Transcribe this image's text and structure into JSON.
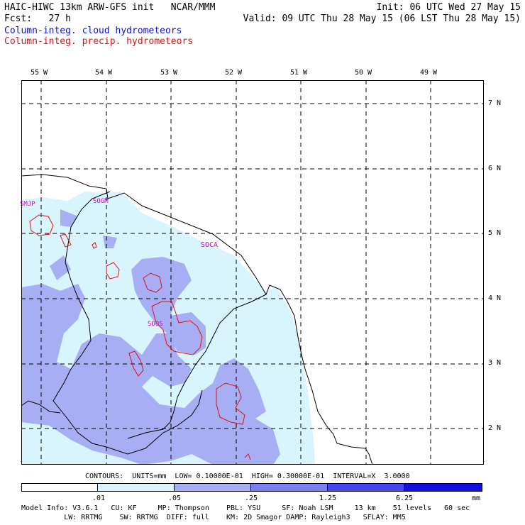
{
  "header": {
    "model": "HAIC-HIWC 13km ARW-GFS init   NCAR/MMM",
    "init": "Init: 06 UTC Wed 27 May 15",
    "fcst": "Fcst:   27 h",
    "valid": "Valid: 09 UTC Thu 28 May 15 (06 LST Thu 28 May 15)",
    "field_cloud": "Column-integ. cloud hydrometeors",
    "field_precip": "Column-integ. precip. hydrometeors"
  },
  "map": {
    "lon_labels": [
      "55 W",
      "54 W",
      "53 W",
      "52 W",
      "51 W",
      "50 W",
      "49 W"
    ],
    "lat_labels": [
      "7 N",
      "6 N",
      "5 N",
      "4 N",
      "3 N",
      "2 N"
    ],
    "stations": [
      "SMJP",
      "SOGM",
      "SOCA",
      "SOOS",
      "A"
    ],
    "colors": {
      "shade1": "#d8f4fc",
      "shade2": "#a8aef4",
      "contour": "#e01010",
      "coast": "#000000",
      "grid": "#000000"
    }
  },
  "contours_text": "CONTOURS:  UNITS=mm  LOW= 0.10000E-01  HIGH= 0.30000E-01  INTERVAL=X  3.0000",
  "colorbar": {
    "thresholds": [
      ".01",
      ".05",
      ".25",
      "1.25",
      "6.25"
    ],
    "unit": "mm",
    "colors": [
      "#ffffff",
      "#d8f4fc",
      "#a8aef4",
      "#7a80f0",
      "#4646ee",
      "#1010e0"
    ]
  },
  "model_info": {
    "line1": "Model Info: V3.6.1   CU: KF     MP: Thompson    PBL: YSU     SF: Noah LSM     13 km    51 levels   60 sec",
    "line2": "          LW: RRTMG    SW: RRTMG  DIFF: full    KM: 2D Smagor DAMP: Rayleigh3   SFLAY: MM5"
  }
}
